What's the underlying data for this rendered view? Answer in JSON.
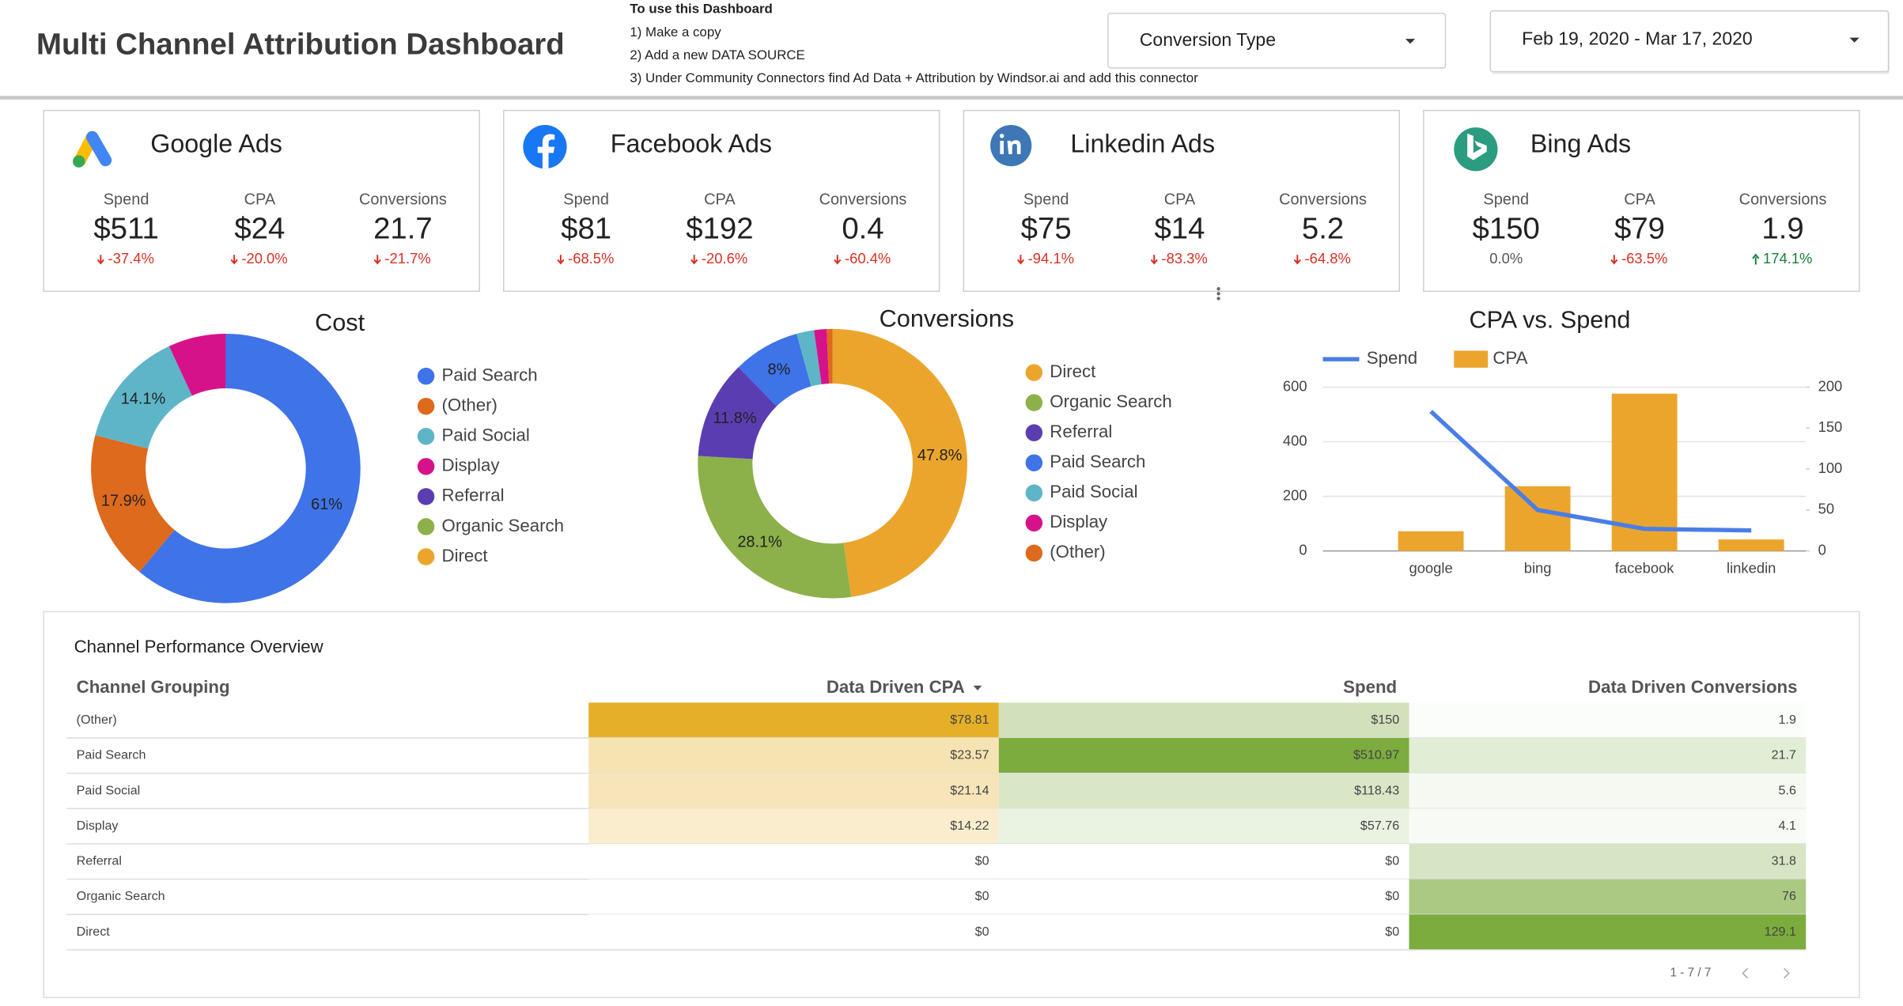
{
  "header": {
    "title": "Multi Channel Attribution Dashboard",
    "instructions": [
      "To use this Dashboard",
      "1) Make a copy",
      "2) Add a new DATA SOURCE",
      "3) Under Community Connectors find Ad Data + Attribution by Windsor.ai and add this connector"
    ],
    "controls": [
      "Conversion Type",
      "Feb 19, 2020 - Mar 17, 2020"
    ]
  },
  "kpi_cards": [
    {
      "title": "Google Ads",
      "metrics": [
        {
          "label": "Spend",
          "value": "$511",
          "change": "-37.4%"
        },
        {
          "label": "CPA",
          "value": "$24",
          "change": "-20.0%"
        },
        {
          "label": "Conversions",
          "value": "21.7",
          "change": "-21.7%"
        }
      ]
    },
    {
      "title": "Facebook Ads",
      "metrics": [
        {
          "label": "Spend",
          "value": "$81",
          "change": "-68.5%"
        },
        {
          "label": "CPA",
          "value": "$192",
          "change": "-20.6%"
        },
        {
          "label": "Conversions",
          "value": "0.4",
          "change": "-60.4%"
        }
      ]
    },
    {
      "title": "Linkedin Ads",
      "metrics": [
        {
          "label": "Spend",
          "value": "$75",
          "change": "-94.1%"
        },
        {
          "label": "CPA",
          "value": "$14",
          "change": "-83.3%"
        },
        {
          "label": "Conversions",
          "value": "5.2",
          "change": "-64.8%"
        }
      ]
    },
    {
      "title": "Bing Ads",
      "metrics": [
        {
          "label": "Spend",
          "value": "$150",
          "change": "0.0%"
        },
        {
          "label": "CPA",
          "value": "$79",
          "change": "-63.5%"
        },
        {
          "label": "Conversions",
          "value": "1.9",
          "change": "174.1%"
        }
      ]
    }
  ],
  "chart_data": [
    {
      "type": "pie",
      "title": "Cost",
      "categories": [
        "Paid Search",
        "(Other)",
        "Paid Social",
        "Display",
        "Referral",
        "Organic Search",
        "Direct"
      ],
      "values": [
        61,
        17.9,
        14.1,
        6.9,
        0,
        0,
        0
      ],
      "value_labels": [
        "61%",
        "17.9%",
        "14.1%",
        null,
        null,
        null,
        null
      ],
      "colors": [
        "#3f73e8",
        "#dd6a1d",
        "#5eb5c8",
        "#d6128a",
        "#5b3db2",
        "#8cb04a",
        "#eca52c"
      ],
      "donut": true,
      "legend": "right"
    },
    {
      "type": "pie",
      "title": "Conversions",
      "categories": [
        "Direct",
        "Organic Search",
        "Referral",
        "Paid Search",
        "Paid Social",
        "Display",
        "(Other)"
      ],
      "values": [
        47.8,
        28.1,
        11.8,
        8,
        2.1,
        1.5,
        0.7
      ],
      "value_labels": [
        "47.8%",
        "28.1%",
        "11.8%",
        "8%",
        null,
        null,
        null
      ],
      "colors": [
        "#eca52c",
        "#8cb04a",
        "#5b3db2",
        "#3f73e8",
        "#5eb5c8",
        "#d6128a",
        "#dd6a1d"
      ],
      "donut": true,
      "legend": "right"
    },
    {
      "type": "combo",
      "title": "CPA vs. Spend",
      "categories": [
        "google",
        "bing",
        "facebook",
        "linkedin"
      ],
      "series": [
        {
          "name": "Spend",
          "type": "line",
          "color": "#4a7ee6",
          "values": [
            511,
            150,
            81,
            75
          ]
        },
        {
          "name": "CPA",
          "type": "bar",
          "color": "#eca52c",
          "axis": "y2",
          "values": [
            24,
            79,
            192,
            14
          ]
        }
      ],
      "ylim": [
        0,
        600
      ],
      "yticks": [
        0,
        200,
        400,
        600
      ],
      "y2lim": [
        0,
        200
      ],
      "y2ticks": [
        0,
        50,
        100,
        150,
        200
      ],
      "grid": true,
      "legend": "top-left"
    }
  ],
  "table": {
    "title": "Channel Performance Overview",
    "columns": [
      "Channel Grouping",
      "Data Driven CPA",
      "Spend",
      "Data Driven Conversions"
    ],
    "rows": [
      [
        "(Other)",
        "$78.81",
        "$150",
        "1.9"
      ],
      [
        "Paid Search",
        "$23.57",
        "$510.97",
        "21.7"
      ],
      [
        "Paid Social",
        "$21.14",
        "$118.43",
        "5.6"
      ],
      [
        "Display",
        "$14.22",
        "$57.76",
        "4.1"
      ],
      [
        "Referral",
        "$0",
        "$0",
        "31.8"
      ],
      [
        "Organic Search",
        "$0",
        "$0",
        "76"
      ],
      [
        "Direct",
        "$0",
        "$0",
        "129.1"
      ]
    ],
    "pagination": "1 - 7 / 7"
  }
}
